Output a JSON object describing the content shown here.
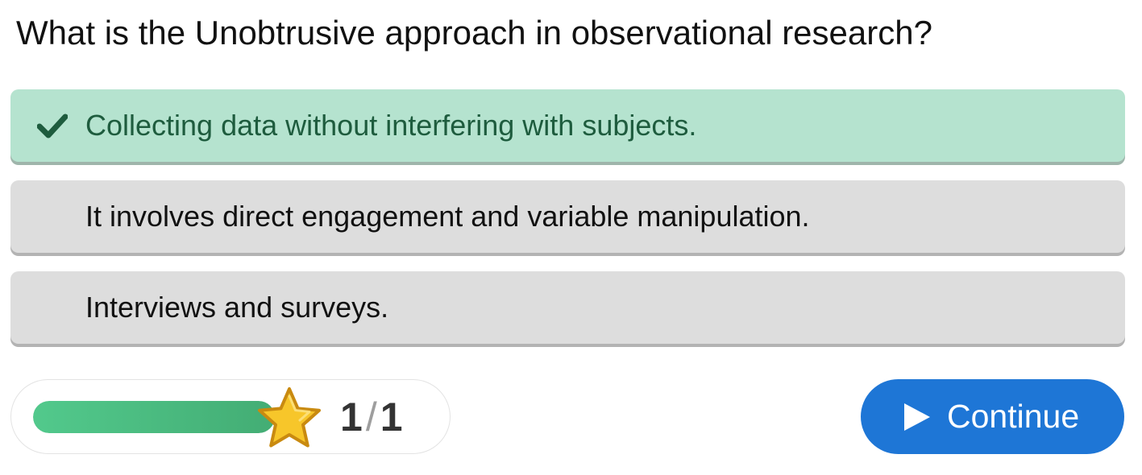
{
  "question": {
    "text": "What is the Unobtrusive approach in observational research?"
  },
  "options": [
    {
      "label": "Collecting data without interfering with subjects.",
      "state": "correct",
      "icon": "check-icon"
    },
    {
      "label": "It involves direct engagement and variable manipulation.",
      "state": "default"
    },
    {
      "label": "Interviews and surveys.",
      "state": "default"
    }
  ],
  "progress": {
    "fraction": 1.0,
    "current": "1",
    "separator": "/",
    "total": "1",
    "icon": "star-icon",
    "fill_color": "#4cbf82"
  },
  "continue_button": {
    "label": "Continue",
    "icon": "play-icon",
    "color": "#1e76d6"
  },
  "colors": {
    "correct_bg": "#b5e3cf",
    "correct_text": "#1e5c3e",
    "option_bg": "#dddddd"
  }
}
